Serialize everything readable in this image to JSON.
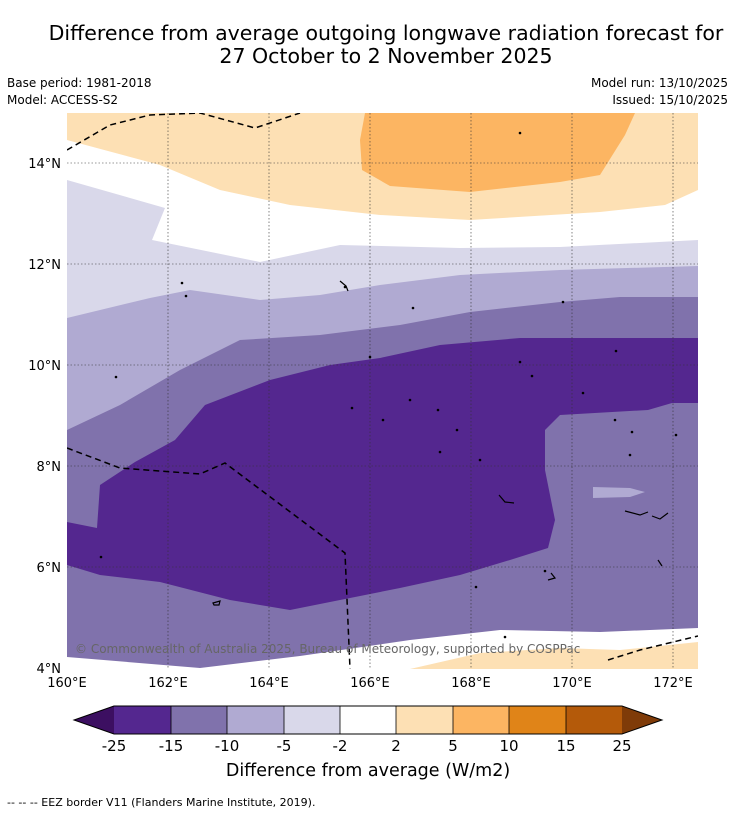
{
  "title_line1": "Difference from average outgoing longwave radiation forecast for",
  "title_line2": "27 October to 2 November 2025",
  "base_period": "Base period: 1981-2018",
  "model": "Model: ACCESS-S2",
  "model_run": "Model run: 13/10/2025",
  "issued": "Issued: 15/10/2025",
  "copyright": "© Commonwealth of Australia 2025, Bureau of Meteorology, supported by COSPPac",
  "lat_labels": [
    "4°N",
    "6°N",
    "8°N",
    "10°N",
    "12°N",
    "14°N"
  ],
  "lon_labels": [
    "160°E",
    "162°E",
    "164°E",
    "166°E",
    "168°E",
    "170°E",
    "172°E"
  ],
  "colorbar": {
    "label": "Difference from average (W/m2)",
    "ticks": [
      "-25",
      "-15",
      "-10",
      "-5",
      "-2",
      "2",
      "5",
      "10",
      "15",
      "25"
    ],
    "colors": {
      "lt_neg25": "#3c0f61",
      "neg25_neg15": "#54278f",
      "neg15_neg10": "#8072ac",
      "neg10_neg5": "#b0aad2",
      "neg5_neg2": "#d9d8ea",
      "neg2_2": "#ffffff",
      "pos2_5": "#fde0b4",
      "pos5_10": "#fcb562",
      "pos10_15": "#e08418",
      "pos15_25": "#b45a0a",
      "gt25": "#7f3b08"
    }
  },
  "footnote": "--  --  -- EEZ border V11 (Flanders Marine Institute, 2019)."
}
